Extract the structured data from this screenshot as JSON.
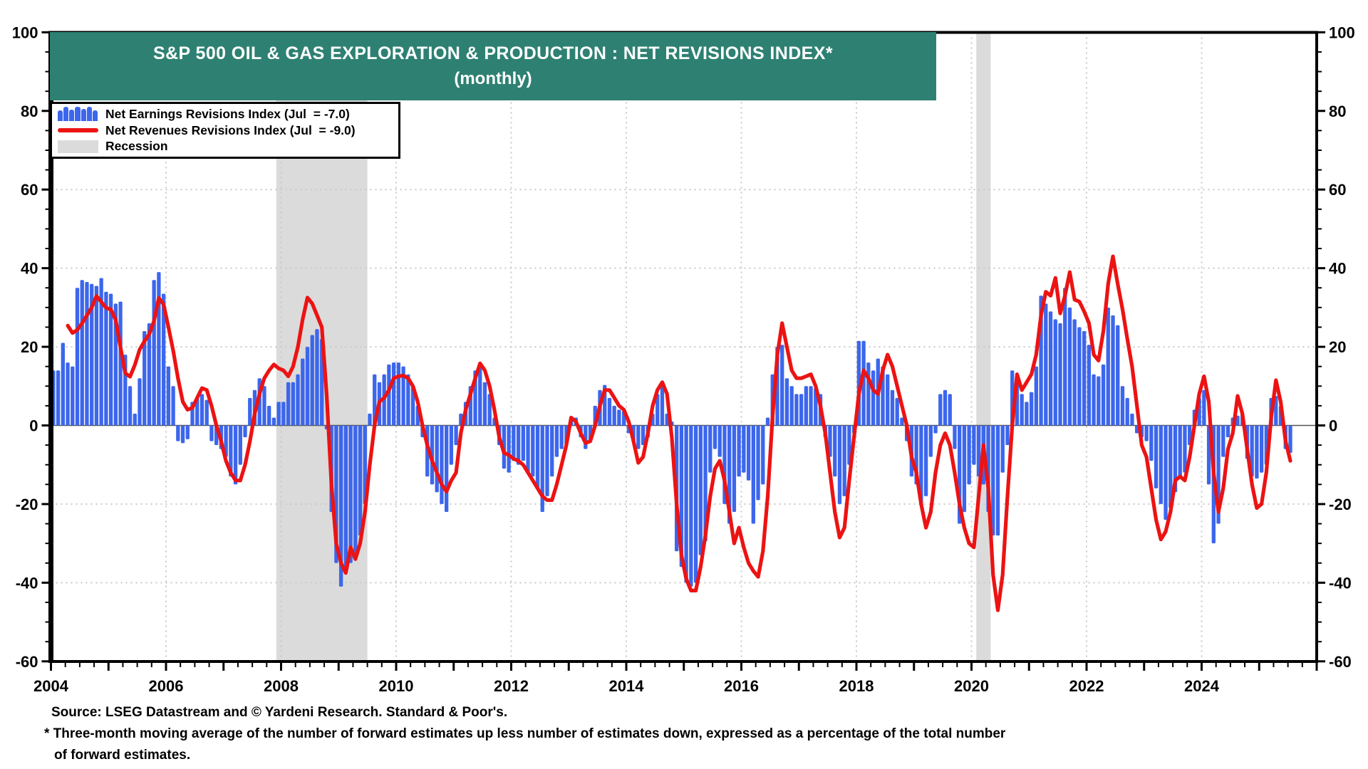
{
  "title": {
    "line1": "S&P 500  OIL & GAS EXPLORATION & PRODUCTION : NET REVISIONS INDEX*",
    "line2": "(monthly)"
  },
  "legend": {
    "earnings_label": "Net Earnings Revisions Index (Jul  = -7.0)",
    "revenues_label": "Net Revenues Revisions Index (Jul  = -9.0)",
    "recession_label": "Recession"
  },
  "source": {
    "line1": "Source: LSEG Datastream and © Yardeni Research. Standard & Poor's.",
    "line2": "* Three-month moving average of the number of forward estimates up less number of estimates down, expressed as a percentage of the total number",
    "line3": "of forward estimates."
  },
  "colors": {
    "banner": "#2E8172",
    "bars": "#3C66EC",
    "line": "#EC1313",
    "recession": "#DBDBDB",
    "grid": "#C8C8C8",
    "zero_line": "#555555",
    "frame": "#000000"
  },
  "chart_data": {
    "type": "bar",
    "title": "S&P 500 Oil & Gas Exploration & Production: Net Revisions Index (monthly)",
    "start_month": "2004-01",
    "end_month": "2025-07",
    "x_domain_end": "2026-01",
    "ylim": [
      -60,
      100
    ],
    "y_tick_step": 20,
    "y_minor_step": 5,
    "h_gridlines": [
      60,
      40,
      20,
      -20,
      -40
    ],
    "v_gridline_years": [
      2006,
      2008,
      2010,
      2012,
      2014,
      2016,
      2018,
      2020,
      2022,
      2024
    ],
    "x_year_labels": [
      2004,
      2006,
      2008,
      2010,
      2012,
      2014,
      2016,
      2018,
      2020,
      2022,
      2024
    ],
    "recessions": [
      {
        "from": "2007-12",
        "to": "2009-06"
      },
      {
        "from": "2020-02",
        "to": "2020-04"
      }
    ],
    "legend_position": "top-left",
    "grid": "dotted",
    "series": [
      {
        "name": "Net Earnings Revisions Index",
        "type": "bar",
        "latest_label": "Jul  = -7.0",
        "values": [
          14,
          14,
          21,
          16,
          15,
          35,
          37,
          36.5,
          36,
          35.5,
          37.5,
          34,
          33.5,
          31,
          31.5,
          18,
          10,
          3,
          12,
          24,
          26,
          37,
          39,
          33.5,
          15,
          10,
          -4,
          -4.5,
          -3.5,
          6,
          7,
          8,
          6.5,
          -4,
          -5,
          -6,
          -8,
          -13,
          -15,
          -10,
          -3,
          7,
          9,
          12,
          10,
          5,
          2,
          6,
          6,
          11,
          11,
          13,
          17,
          20,
          23,
          24.5,
          22,
          -1,
          -22,
          -35,
          -41,
          -37,
          -35,
          -34,
          -28,
          -20,
          3,
          13,
          11,
          13,
          15.5,
          16,
          16,
          15,
          13,
          10,
          5,
          -3,
          -13,
          -15,
          -17,
          -20,
          -22,
          -10,
          -5,
          3,
          6,
          10,
          14,
          16,
          11,
          8,
          2,
          -5,
          -11,
          -12,
          -9,
          -10,
          -9,
          -12,
          -13,
          -16,
          -22,
          -18,
          -13,
          -8,
          -6,
          -5,
          1.5,
          2,
          -3,
          -6,
          -4,
          5,
          9,
          10.3,
          7,
          5,
          4,
          3.7,
          -2,
          -4,
          -6,
          -5,
          -3,
          3,
          8,
          10,
          3,
          1,
          -32,
          -36,
          -40,
          -41,
          -40,
          -33,
          -29.5,
          -12,
          -6,
          -8,
          -20,
          -25,
          -22,
          -13,
          -12,
          -14,
          -25,
          -19,
          -15,
          2,
          13,
          20,
          20.5,
          12,
          10,
          8,
          8,
          10,
          10,
          9.5,
          8,
          -3,
          -8,
          -13,
          -20,
          -18,
          -10,
          -2,
          21.5,
          21.5,
          16,
          14,
          17,
          15,
          13,
          9,
          7,
          2,
          -4,
          -13,
          -15,
          -20,
          -18,
          -8,
          -2,
          8,
          9,
          8,
          -6,
          -25,
          -22,
          -15,
          -10,
          -13,
          -15,
          -22,
          -28,
          -28,
          -12,
          -5,
          14,
          12.5,
          8,
          6,
          8.5,
          15,
          33,
          31,
          29,
          27,
          26,
          35,
          30,
          27,
          25,
          24,
          20.5,
          13,
          12.5,
          15.5,
          30,
          28,
          25.5,
          10,
          7,
          3,
          -2,
          -3,
          -4,
          -9,
          -16,
          -20,
          -24,
          -21,
          -17,
          -13,
          -12,
          -5,
          4,
          7,
          9,
          -15,
          -30,
          -25,
          -8,
          -3,
          2,
          2.5,
          3,
          -8.5,
          -13,
          -13.5,
          -12,
          -10,
          7,
          7.5,
          5,
          -6,
          -7
        ]
      },
      {
        "name": "Net Revenues Revisions Index",
        "type": "line",
        "latest_label": "Jul  = -9.0",
        "values": [
          null,
          null,
          null,
          25.4,
          23.5,
          24.3,
          26,
          28,
          30,
          32.9,
          31.4,
          29.9,
          29.5,
          26.9,
          19.9,
          13.3,
          12.4,
          15.4,
          19.3,
          21.4,
          23.2,
          26.6,
          32.4,
          30.8,
          25,
          19,
          12,
          6,
          4,
          4.5,
          7,
          9.5,
          9,
          5,
          0,
          -4,
          -9,
          -12,
          -14,
          -14,
          -10,
          -4,
          3,
          8,
          12,
          14,
          15.5,
          14.5,
          14,
          12.5,
          15,
          20,
          27,
          32.5,
          31,
          28,
          25,
          8,
          -15,
          -30,
          -35,
          -37.5,
          -31,
          -34,
          -30,
          -22,
          -10,
          0,
          6,
          7,
          9,
          12,
          12.5,
          12.7,
          12,
          10,
          6,
          0,
          -5,
          -9,
          -12,
          -15,
          -16.8,
          -14,
          -12,
          -2,
          4,
          8,
          12,
          15.8,
          14,
          10,
          4,
          -3,
          -7,
          -7.5,
          -8.5,
          -9,
          -10,
          -12,
          -14,
          -16,
          -18,
          -19,
          -19,
          -15,
          -10,
          -5,
          2,
          1,
          -2,
          -4.5,
          -4,
          0,
          5,
          9,
          9,
          7,
          5,
          4,
          1,
          -4,
          -9.5,
          -8,
          -2,
          5,
          9,
          11,
          8,
          -3,
          -20,
          -33,
          -39,
          -42,
          -42,
          -36,
          -28,
          -18,
          -11,
          -9,
          -14,
          -22,
          -30,
          -26,
          -31,
          -35,
          -37,
          -38.5,
          -32,
          -18,
          2,
          18,
          26,
          20,
          14,
          12,
          12,
          12.5,
          13,
          10,
          5,
          -2,
          -12,
          -22,
          -28.5,
          -26,
          -14,
          -3,
          8,
          14,
          12,
          9,
          8,
          14,
          18,
          15,
          10,
          5,
          0,
          -8,
          -12,
          -20,
          -26,
          -22,
          -12,
          -5,
          -2,
          -5,
          -12,
          -20,
          -26,
          -30,
          -31,
          -18,
          -5,
          -16,
          -38,
          -47,
          -38,
          -18,
          0,
          13,
          9,
          11,
          13,
          18,
          28,
          34,
          33,
          37.5,
          28.5,
          33,
          39,
          32,
          31.5,
          29,
          26,
          18,
          16.5,
          24,
          36,
          43,
          36,
          29.5,
          22,
          15,
          5,
          -5,
          -8,
          -16,
          -24,
          -29,
          -27,
          -22,
          -14,
          -13,
          -14,
          -8,
          0,
          8,
          12.5,
          6,
          -12,
          -22,
          -16,
          -6,
          -2,
          7.5,
          3,
          -6,
          -15,
          -21,
          -20,
          -12,
          2,
          11.5,
          6,
          -4,
          -9
        ]
      }
    ]
  }
}
